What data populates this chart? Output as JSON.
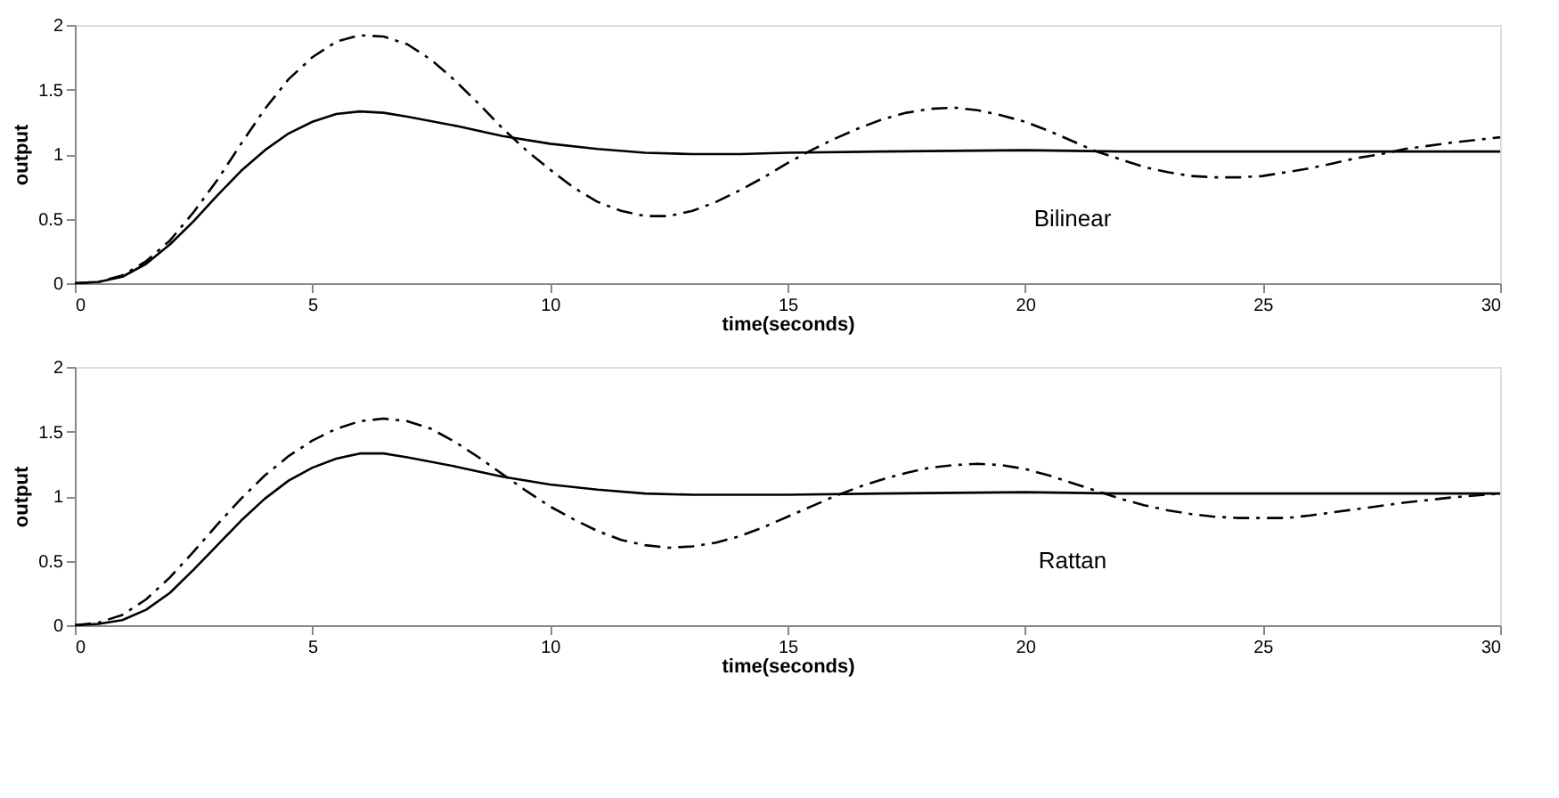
{
  "chart_data": [
    {
      "type": "line",
      "xlabel": "time(seconds)",
      "ylabel": "output",
      "xlim": [
        0,
        30
      ],
      "xticks": [
        0,
        5,
        10,
        15,
        20,
        25,
        30
      ],
      "ylim": [
        0,
        2
      ],
      "yticks": [
        0,
        0.5,
        1,
        1.5,
        2
      ],
      "grid": false,
      "legend": false,
      "annotations": [
        "Bilinear"
      ],
      "series": [
        {
          "color": "#000000",
          "line_style": "solid",
          "x": [
            0,
            0.5,
            1,
            1.5,
            2,
            2.5,
            3,
            3.5,
            4,
            4.5,
            5,
            5.5,
            6,
            6.5,
            7,
            8,
            9,
            10,
            11,
            12,
            13,
            14,
            15,
            17,
            20,
            22,
            25,
            28,
            30
          ],
          "values": [
            0,
            0.01,
            0.05,
            0.15,
            0.3,
            0.48,
            0.68,
            0.87,
            1.03,
            1.16,
            1.25,
            1.31,
            1.33,
            1.32,
            1.29,
            1.22,
            1.14,
            1.08,
            1.04,
            1.01,
            1.0,
            1.0,
            1.01,
            1.02,
            1.03,
            1.02,
            1.02,
            1.02,
            1.02
          ]
        },
        {
          "color": "#000000",
          "line_style": "dashed",
          "x": [
            0,
            0.5,
            1,
            1.5,
            2,
            2.5,
            3,
            3.5,
            4,
            4.5,
            5,
            5.5,
            6,
            6.5,
            7,
            7.5,
            8,
            8.5,
            9,
            9.5,
            10,
            10.5,
            11,
            11.5,
            12,
            12.5,
            13,
            13.5,
            14,
            14.5,
            15,
            15.5,
            16,
            16.5,
            17,
            17.5,
            18,
            18.5,
            19,
            19.5,
            20,
            20.5,
            21,
            21.5,
            22,
            22.5,
            23,
            23.5,
            24,
            24.5,
            25,
            25.5,
            26,
            26.5,
            27,
            27.5,
            28,
            29,
            30
          ],
          "values": [
            0,
            0.01,
            0.06,
            0.17,
            0.33,
            0.55,
            0.8,
            1.08,
            1.35,
            1.58,
            1.75,
            1.87,
            1.92,
            1.91,
            1.85,
            1.73,
            1.57,
            1.39,
            1.2,
            1.03,
            0.88,
            0.74,
            0.63,
            0.56,
            0.52,
            0.52,
            0.56,
            0.63,
            0.72,
            0.82,
            0.93,
            1.03,
            1.12,
            1.2,
            1.27,
            1.32,
            1.35,
            1.36,
            1.34,
            1.3,
            1.25,
            1.18,
            1.1,
            1.02,
            0.96,
            0.9,
            0.86,
            0.83,
            0.82,
            0.82,
            0.83,
            0.86,
            0.89,
            0.93,
            0.97,
            1.0,
            1.04,
            1.09,
            1.13
          ]
        }
      ]
    },
    {
      "type": "line",
      "xlabel": "time(seconds)",
      "ylabel": "output",
      "xlim": [
        0,
        30
      ],
      "xticks": [
        0,
        5,
        10,
        15,
        20,
        25,
        30
      ],
      "ylim": [
        0,
        2
      ],
      "yticks": [
        0,
        0.5,
        1,
        1.5,
        2
      ],
      "grid": false,
      "legend": false,
      "annotations": [
        "Rattan"
      ],
      "series": [
        {
          "color": "#000000",
          "line_style": "solid",
          "x": [
            0,
            0.5,
            1,
            1.5,
            2,
            2.5,
            3,
            3.5,
            4,
            4.5,
            5,
            5.5,
            6,
            6.5,
            7,
            8,
            9,
            10,
            11,
            12,
            13,
            14,
            15,
            17,
            20,
            22,
            25,
            28,
            30
          ],
          "values": [
            0,
            0.01,
            0.04,
            0.12,
            0.25,
            0.43,
            0.62,
            0.81,
            0.98,
            1.12,
            1.22,
            1.29,
            1.33,
            1.33,
            1.3,
            1.23,
            1.15,
            1.09,
            1.05,
            1.02,
            1.01,
            1.01,
            1.01,
            1.02,
            1.03,
            1.02,
            1.02,
            1.02,
            1.02
          ]
        },
        {
          "color": "#000000",
          "line_style": "dashed",
          "x": [
            0,
            0.5,
            1,
            1.5,
            2,
            2.5,
            3,
            3.5,
            4,
            4.5,
            5,
            5.5,
            6,
            6.5,
            7,
            7.5,
            8,
            8.5,
            9,
            9.5,
            10,
            10.5,
            11,
            11.5,
            12,
            12.5,
            13,
            13.5,
            14,
            14.5,
            15,
            15.5,
            16,
            16.5,
            17,
            17.5,
            18,
            18.5,
            19,
            19.5,
            20,
            20.5,
            21,
            21.5,
            22,
            22.5,
            23,
            23.5,
            24,
            24.5,
            25,
            25.5,
            26,
            27,
            28,
            29,
            30
          ],
          "values": [
            0,
            0.02,
            0.08,
            0.2,
            0.37,
            0.57,
            0.78,
            0.98,
            1.16,
            1.31,
            1.43,
            1.52,
            1.58,
            1.6,
            1.58,
            1.52,
            1.42,
            1.3,
            1.17,
            1.04,
            0.92,
            0.82,
            0.73,
            0.66,
            0.62,
            0.6,
            0.61,
            0.64,
            0.69,
            0.76,
            0.84,
            0.92,
            1.0,
            1.07,
            1.13,
            1.18,
            1.22,
            1.24,
            1.25,
            1.24,
            1.21,
            1.16,
            1.1,
            1.04,
            0.98,
            0.93,
            0.89,
            0.86,
            0.84,
            0.83,
            0.83,
            0.83,
            0.85,
            0.9,
            0.95,
            0.99,
            1.02
          ]
        }
      ]
    }
  ]
}
